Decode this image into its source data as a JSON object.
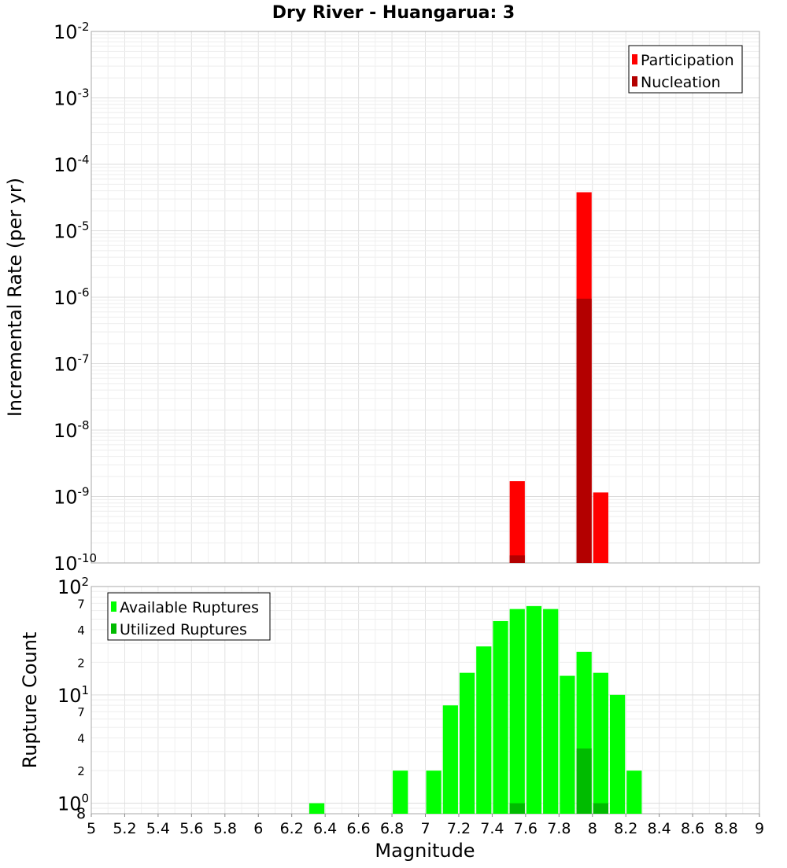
{
  "chart_data": {
    "title": "Dry River - Huangarua: 3",
    "xlabel": "Magnitude",
    "xlim": [
      5,
      9
    ],
    "x_ticks": [
      "5",
      "5.2",
      "5.4",
      "5.6",
      "5.8",
      "6",
      "6.2",
      "6.4",
      "6.6",
      "6.8",
      "7",
      "7.2",
      "7.4",
      "7.6",
      "7.8",
      "8",
      "8.2",
      "8.4",
      "8.6",
      "8.8",
      "9"
    ],
    "bin_width": 0.1,
    "panels": [
      {
        "type": "bar",
        "scale": "log",
        "ylabel": "Incremental Rate (per yr)",
        "ylim": [
          1e-10,
          0.01
        ],
        "y_ticks": [
          {
            "base": "10",
            "exp": "-10"
          },
          {
            "base": "10",
            "exp": "-9"
          },
          {
            "base": "10",
            "exp": "-8"
          },
          {
            "base": "10",
            "exp": "-7"
          },
          {
            "base": "10",
            "exp": "-6"
          },
          {
            "base": "10",
            "exp": "-5"
          },
          {
            "base": "10",
            "exp": "-4"
          },
          {
            "base": "10",
            "exp": "-3"
          },
          {
            "base": "10",
            "exp": "-2"
          }
        ],
        "legend_position": "top-right",
        "series": [
          {
            "name": "Participation",
            "color": "#ff0000",
            "x": [
              7.55,
              7.95,
              8.05
            ],
            "values": [
              1.7e-09,
              3.8e-05,
              1.15e-09
            ]
          },
          {
            "name": "Nucleation",
            "color": "#b30000",
            "x": [
              7.55,
              7.95
            ],
            "values": [
              1.3e-10,
              9.5e-07
            ]
          }
        ]
      },
      {
        "type": "bar",
        "scale": "log",
        "ylabel": "Rupture Count",
        "ylim": [
          0.8,
          100
        ],
        "y_major_ticks": [
          {
            "base": "10",
            "exp": "0"
          },
          {
            "base": "10",
            "exp": "1"
          },
          {
            "base": "10",
            "exp": "2"
          }
        ],
        "y_minor_ticks": [
          "8",
          "2",
          "4",
          "7",
          "2",
          "4",
          "7"
        ],
        "legend_position": "top-left",
        "series": [
          {
            "name": "Available Ruptures",
            "color": "#00ff00",
            "x": [
              6.35,
              6.85,
              7.05,
              7.15,
              7.25,
              7.35,
              7.45,
              7.55,
              7.65,
              7.75,
              7.85,
              7.95,
              8.05,
              8.15,
              8.25
            ],
            "values": [
              1,
              2,
              2,
              8,
              16,
              28,
              48,
              62,
              66,
              62,
              15,
              25,
              16,
              10,
              2
            ]
          },
          {
            "name": "Utilized Ruptures",
            "color": "#00bb00",
            "x": [
              7.55,
              7.95,
              8.05
            ],
            "values": [
              1,
              3.2,
              1
            ]
          }
        ]
      }
    ]
  }
}
